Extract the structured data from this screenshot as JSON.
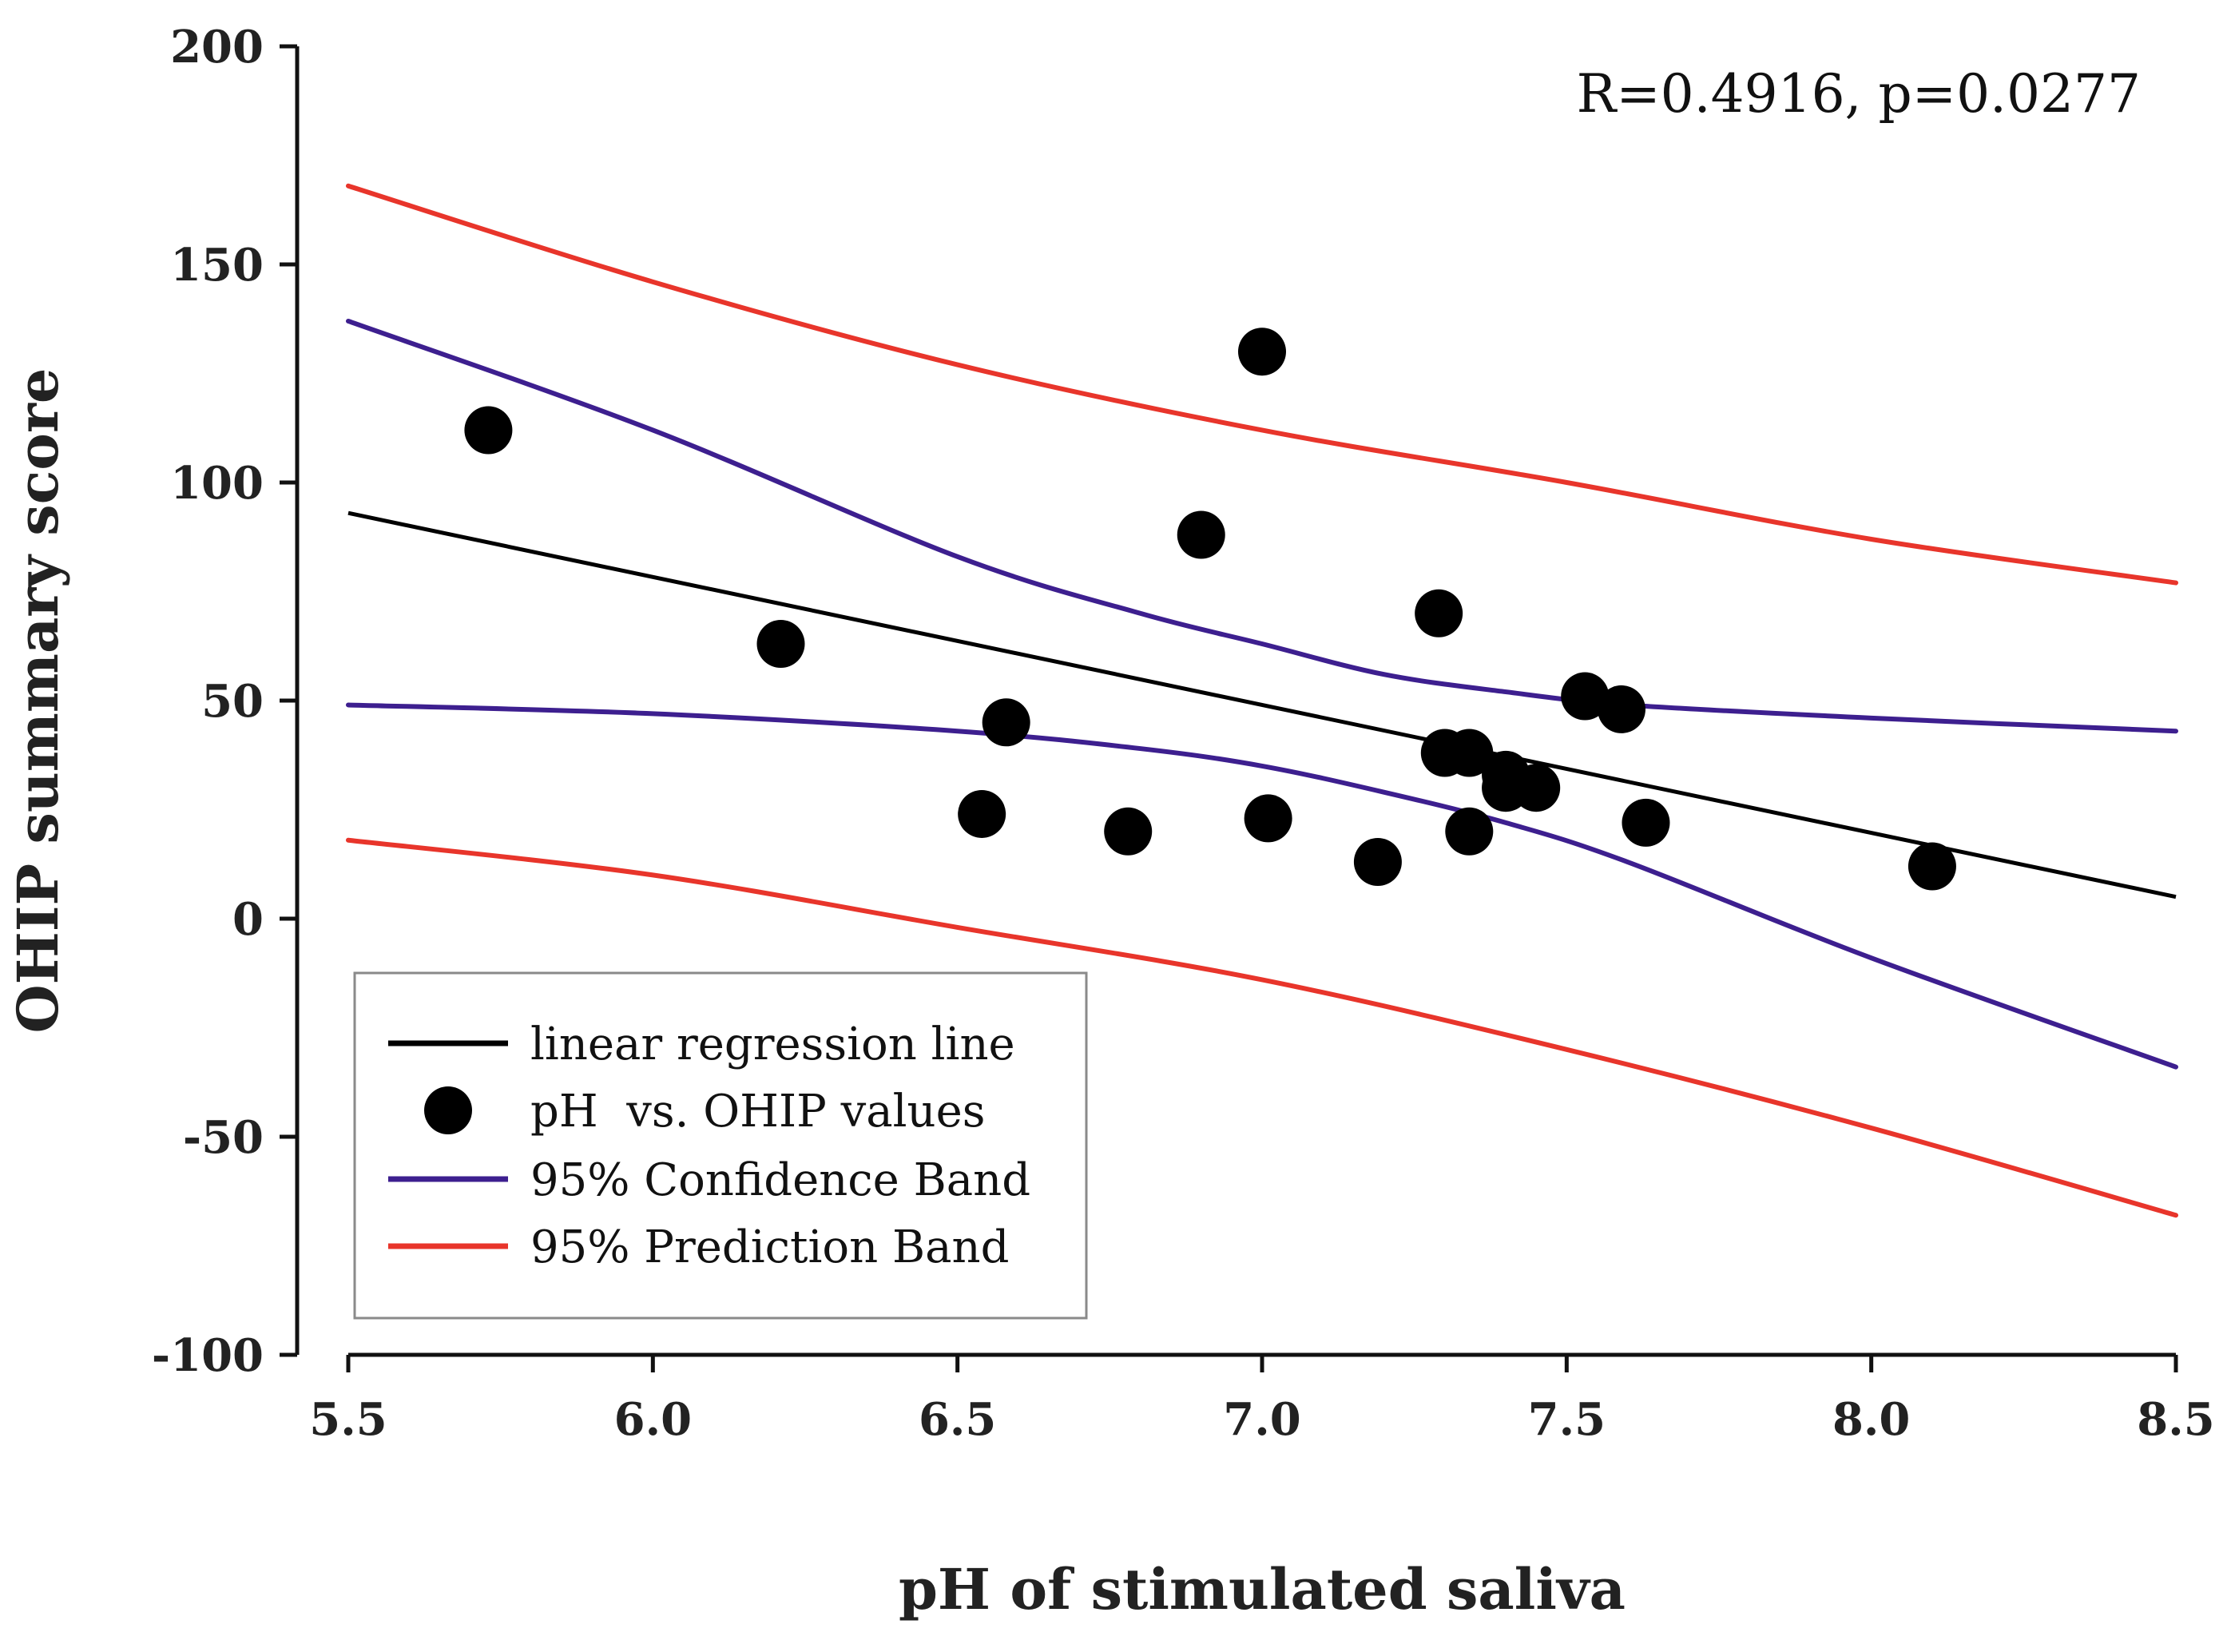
{
  "chart_data": {
    "type": "scatter",
    "title": "",
    "xlabel": "pH of stimulated saliva",
    "ylabel": "OHIP summary score",
    "xlim": [
      5.5,
      8.5
    ],
    "ylim": [
      -100,
      200
    ],
    "x_ticks": [
      5.5,
      6.0,
      6.5,
      7.0,
      7.5,
      8.0,
      8.5
    ],
    "x_tick_labels": [
      "5.5",
      "6.0",
      "6.5",
      "7.0",
      "7.5",
      "8.0",
      "8.5"
    ],
    "y_ticks": [
      -100,
      -50,
      0,
      50,
      100,
      150,
      200
    ],
    "y_tick_labels": [
      "-100",
      "-50",
      "0",
      "50",
      "100",
      "150",
      "200"
    ],
    "grid": false,
    "annotation": "R=0.4916, p=0.0277",
    "legend": {
      "placement": "bottom-left",
      "entries": [
        {
          "label": "linear regression line",
          "color": "#000000",
          "kind": "line"
        },
        {
          "label": "pH  vs. OHIP values",
          "color": "#000000",
          "kind": "marker"
        },
        {
          "label": "95% Confidence Band",
          "color": "#3d1f8f",
          "kind": "line"
        },
        {
          "label": "95% Prediction Band",
          "color": "#e8352b",
          "kind": "line"
        }
      ]
    },
    "points": [
      {
        "x": 5.73,
        "y": 112
      },
      {
        "x": 6.21,
        "y": 63
      },
      {
        "x": 6.54,
        "y": 24
      },
      {
        "x": 6.58,
        "y": 45
      },
      {
        "x": 6.78,
        "y": 20
      },
      {
        "x": 6.9,
        "y": 88
      },
      {
        "x": 7.0,
        "y": 130
      },
      {
        "x": 7.01,
        "y": 23
      },
      {
        "x": 7.19,
        "y": 13
      },
      {
        "x": 7.29,
        "y": 70
      },
      {
        "x": 7.3,
        "y": 38
      },
      {
        "x": 7.34,
        "y": 38
      },
      {
        "x": 7.34,
        "y": 20
      },
      {
        "x": 7.4,
        "y": 33
      },
      {
        "x": 7.4,
        "y": 30
      },
      {
        "x": 7.45,
        "y": 30
      },
      {
        "x": 7.53,
        "y": 51
      },
      {
        "x": 7.59,
        "y": 48
      },
      {
        "x": 7.63,
        "y": 22
      },
      {
        "x": 8.1,
        "y": 12
      }
    ],
    "regression_line": {
      "x": [
        5.5,
        8.5
      ],
      "y": [
        93,
        5
      ],
      "color": "#000000"
    },
    "confidence_band_upper": {
      "x": [
        5.5,
        6.0,
        6.5,
        6.8,
        7.0,
        7.2,
        7.4,
        7.6,
        8.0,
        8.5
      ],
      "y": [
        137,
        112,
        83,
        70,
        63,
        56,
        52,
        49,
        46,
        43
      ],
      "color": "#3d1f8f"
    },
    "confidence_band_lower": {
      "x": [
        5.5,
        6.0,
        6.5,
        6.8,
        7.0,
        7.2,
        7.4,
        7.6,
        8.0,
        8.5
      ],
      "y": [
        49,
        47,
        43,
        39,
        35,
        29,
        22,
        13,
        -9,
        -34
      ],
      "color": "#3d1f8f"
    },
    "prediction_band_upper": {
      "x": [
        5.5,
        6.0,
        6.5,
        7.0,
        7.5,
        8.0,
        8.5
      ],
      "y": [
        168,
        146,
        127,
        112,
        100,
        87,
        77
      ],
      "color": "#e8352b"
    },
    "prediction_band_lower": {
      "x": [
        5.5,
        6.0,
        6.5,
        7.0,
        7.5,
        8.0,
        8.5
      ],
      "y": [
        18,
        10,
        -2,
        -14,
        -30,
        -48,
        -68
      ],
      "color": "#e8352b"
    }
  }
}
